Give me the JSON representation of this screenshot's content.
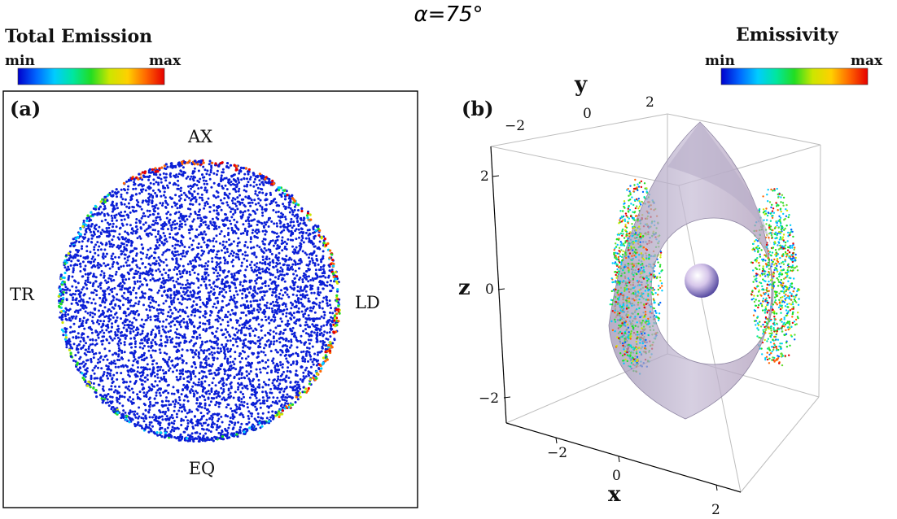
{
  "title": "α=75°",
  "colorbar_left": {
    "title": "Total Emission",
    "min_label": "min",
    "max_label": "max",
    "colors": [
      "#0000cc",
      "#0066ff",
      "#00ccff",
      "#00e6a0",
      "#22dd22",
      "#cce600",
      "#ffd000",
      "#ff6600",
      "#e60000"
    ]
  },
  "colorbar_right": {
    "title": "Emissivity",
    "min_label": "min",
    "max_label": "max",
    "colors": [
      "#0000cc",
      "#0066ff",
      "#00ccff",
      "#00e6a0",
      "#22dd22",
      "#cce600",
      "#ffd000",
      "#ff6600",
      "#e60000"
    ]
  },
  "panel_a": {
    "label": "(a)",
    "directions": {
      "top": "AX",
      "left": "TR",
      "right": "LD",
      "bottom": "EQ"
    }
  },
  "panel_b": {
    "label": "(b)",
    "axis_labels": {
      "x": "x",
      "y": "y",
      "z": "z"
    },
    "x_ticks": [
      "−2",
      "0",
      "2"
    ],
    "y_ticks": [
      "−2",
      "0",
      "2"
    ],
    "z_ticks": [
      "2",
      "0",
      "−2"
    ]
  }
}
